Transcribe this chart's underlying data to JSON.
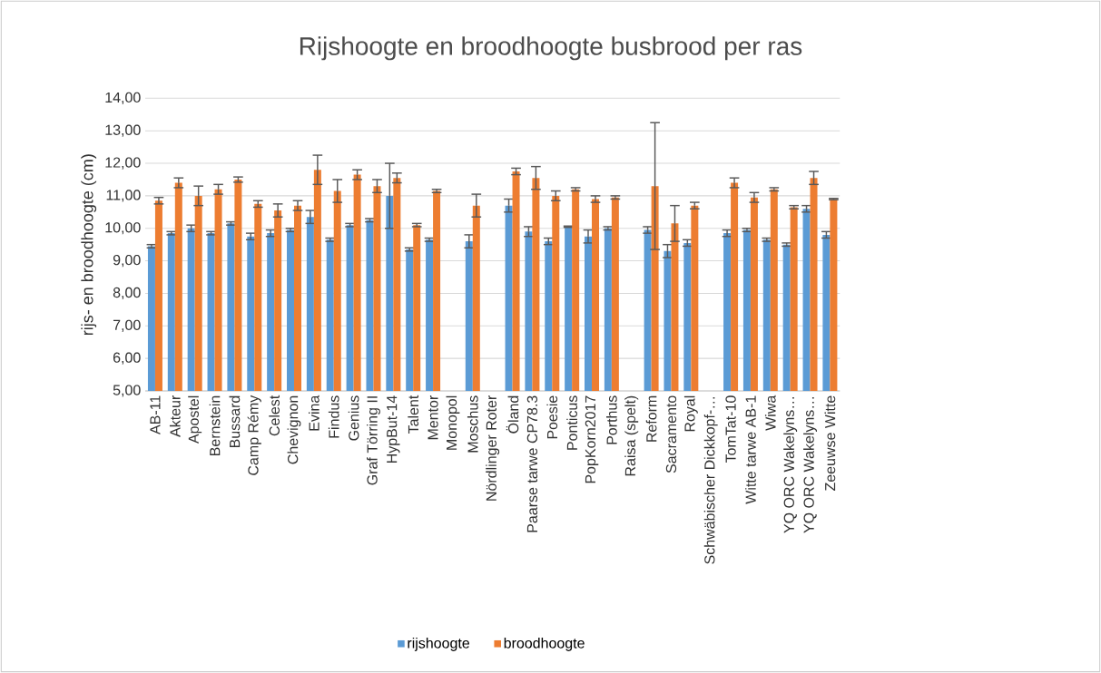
{
  "chart_data": {
    "type": "bar",
    "title": "Rijshoogte en broodhoogte busbrood per ras",
    "ylabel": "rijs- en broodhoogte (cm)",
    "categories": [
      "AB-11",
      "Akteur",
      "Apostel",
      "Bernstein",
      "Bussard",
      "Camp Rémy",
      "Celest",
      "Chevignon",
      "Evina",
      "Findus",
      "Genius",
      "Graf Törring II",
      "HypBut-14",
      "Talent",
      "Mentor",
      "Monopol",
      "Moschus",
      "Nördlinger Roter",
      "Öland",
      "Paarse tarwe CP78.3",
      "Poesie",
      "Ponticus",
      "PopKorn2017",
      "Porthus",
      "Raisa (spelt)",
      "Reform",
      "Sacramento",
      "Royal",
      "Schwäbischer Dickkopf-…",
      "TomTat-10",
      "Witte tarwe AB-1",
      "Wiwa",
      "YQ ORC Wakelyns…",
      "YQ ORC Wakelyns…",
      "Zeeuwse Witte"
    ],
    "series": [
      {
        "name": "rijshoogte",
        "color": "#5b9bd5",
        "values": [
          9.45,
          9.85,
          10.0,
          9.85,
          10.15,
          9.75,
          9.85,
          9.95,
          10.35,
          9.65,
          10.1,
          10.25,
          11.0,
          9.35,
          9.65,
          null,
          9.6,
          null,
          10.7,
          9.9,
          9.6,
          10.05,
          9.75,
          10.0,
          null,
          9.95,
          9.3,
          9.55,
          null,
          9.85,
          9.95,
          9.65,
          9.5,
          10.6,
          9.8
        ],
        "errors": [
          0.05,
          0.05,
          0.1,
          0.05,
          0.05,
          0.1,
          0.1,
          0.05,
          0.2,
          0.05,
          0.05,
          0.05,
          1.0,
          0.05,
          0.05,
          null,
          0.2,
          null,
          0.2,
          0.15,
          0.1,
          0.02,
          0.2,
          0.05,
          null,
          0.1,
          0.2,
          0.1,
          null,
          0.1,
          0.05,
          0.05,
          0.05,
          0.1,
          0.1
        ]
      },
      {
        "name": "broodhoogte",
        "color": "#ed7d31",
        "values": [
          10.85,
          11.4,
          11.0,
          11.2,
          11.5,
          10.75,
          10.55,
          10.7,
          11.8,
          11.15,
          11.65,
          11.3,
          11.55,
          10.1,
          11.15,
          null,
          10.7,
          null,
          11.75,
          11.55,
          11.0,
          11.2,
          10.9,
          10.95,
          null,
          11.3,
          10.15,
          10.7,
          null,
          11.4,
          10.95,
          11.2,
          10.65,
          11.55,
          10.9
        ],
        "errors": [
          0.1,
          0.15,
          0.3,
          0.15,
          0.08,
          0.1,
          0.2,
          0.15,
          0.45,
          0.35,
          0.15,
          0.2,
          0.15,
          0.05,
          0.05,
          null,
          0.35,
          null,
          0.1,
          0.35,
          0.15,
          0.05,
          0.1,
          0.05,
          null,
          1.95,
          0.55,
          0.1,
          null,
          0.15,
          0.15,
          0.05,
          0.05,
          0.2,
          0.02
        ]
      }
    ],
    "ylim": [
      5,
      14
    ],
    "yticks": [
      {
        "value": 5,
        "label": "5,00"
      },
      {
        "value": 6,
        "label": "6,00"
      },
      {
        "value": 7,
        "label": "7,00"
      },
      {
        "value": 8,
        "label": "8,00"
      },
      {
        "value": 9,
        "label": "9,00"
      },
      {
        "value": 10,
        "label": "10,00"
      },
      {
        "value": 11,
        "label": "11,00"
      },
      {
        "value": 12,
        "label": "12,00"
      },
      {
        "value": 13,
        "label": "13,00"
      },
      {
        "value": 14,
        "label": "14,00"
      }
    ],
    "grid": "y",
    "legend": "bottom"
  }
}
